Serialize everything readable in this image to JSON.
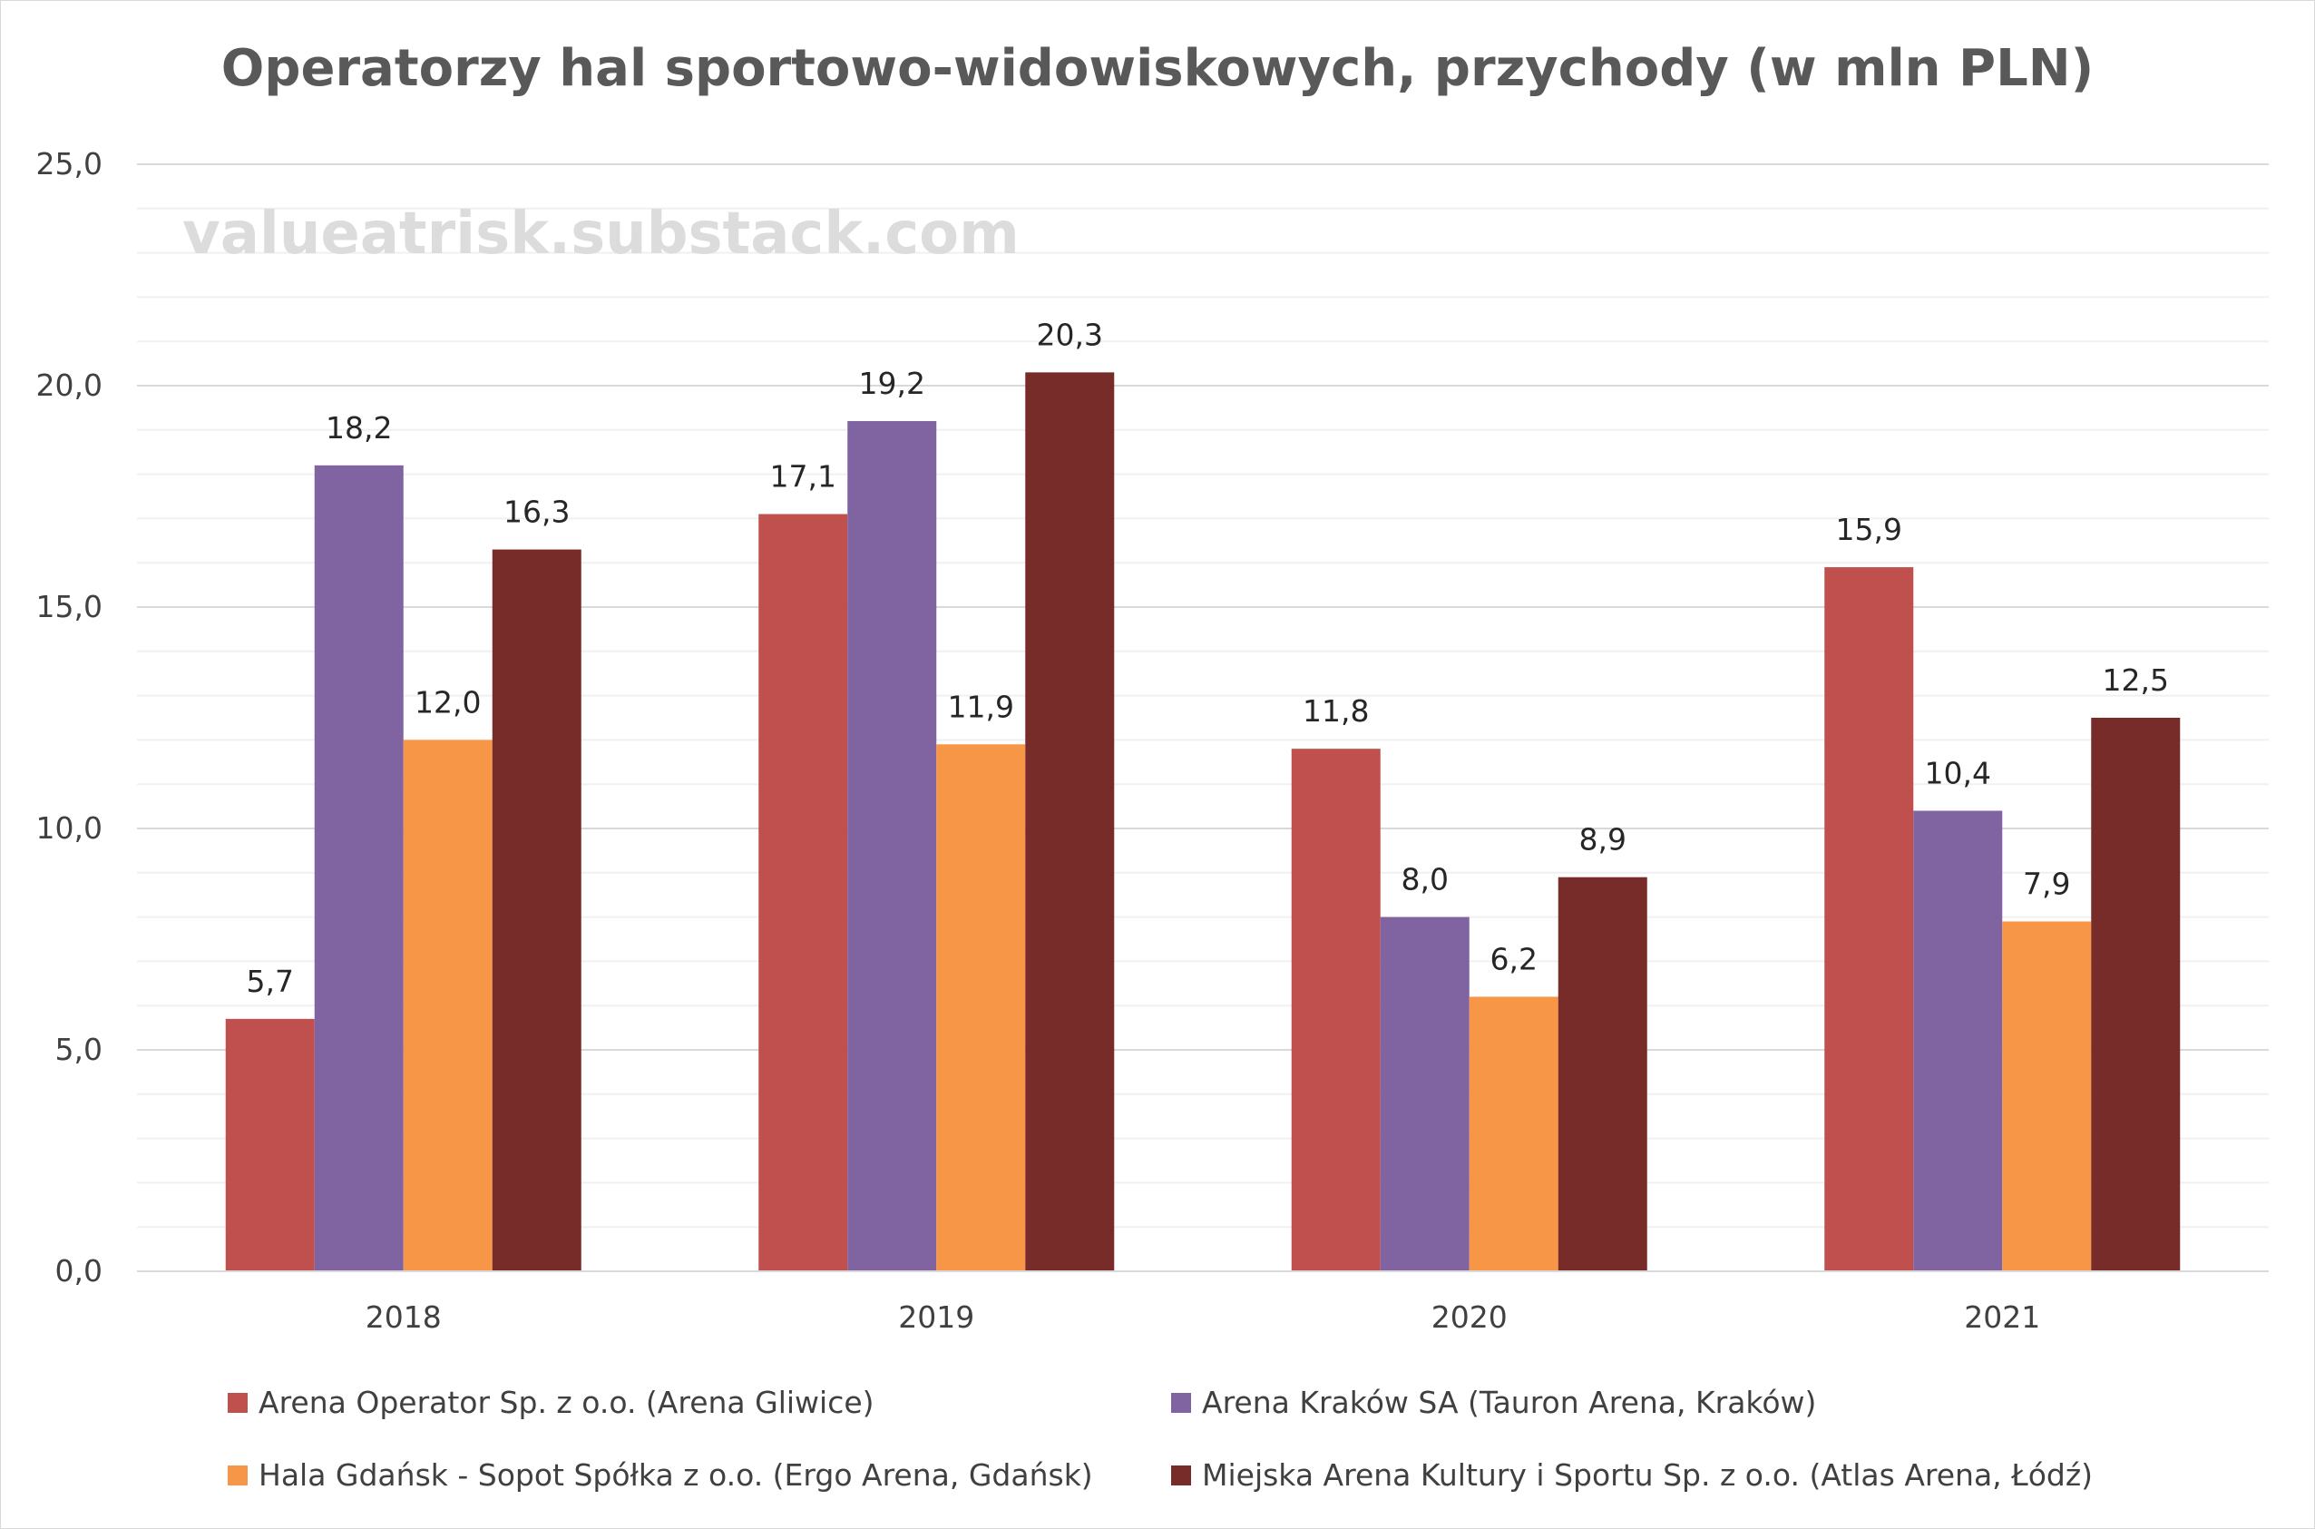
{
  "chart_data": {
    "type": "bar",
    "title": "Operatorzy hal sportowo-widowiskowych, przychody (w mln PLN)",
    "watermark": "valueatrisk.substack.com",
    "xlabel": "",
    "ylabel": "",
    "ylim": [
      0,
      25
    ],
    "yticks": [
      "0,0",
      "5,0",
      "10,0",
      "15,0",
      "20,0",
      "25,0"
    ],
    "grid": true,
    "legend_position": "bottom",
    "categories": [
      "2018",
      "2019",
      "2020",
      "2021"
    ],
    "series": [
      {
        "name": "Arena Operator Sp. z o.o. (Arena Gliwice)",
        "color": "#c0504d",
        "values": [
          5.7,
          17.1,
          11.8,
          15.9
        ],
        "labels": [
          "5,7",
          "17,1",
          "11,8",
          "15,9"
        ]
      },
      {
        "name": "Arena Kraków SA (Tauron Arena, Kraków)",
        "color": "#8064a2",
        "values": [
          18.2,
          19.2,
          8.0,
          10.4
        ],
        "labels": [
          "18,2",
          "19,2",
          "8,0",
          "10,4"
        ]
      },
      {
        "name": "Hala Gdańsk - Sopot Spółka z o.o. (Ergo Arena, Gdańsk)",
        "color": "#f79646",
        "values": [
          12.0,
          11.9,
          6.2,
          7.9
        ],
        "labels": [
          "12,0",
          "11,9",
          "6,2",
          "7,9"
        ]
      },
      {
        "name": "Miejska Arena Kultury i Sportu Sp. z o.o. (Atlas Arena, Łódź)",
        "color": "#772c2a",
        "values": [
          16.3,
          20.3,
          8.9,
          12.5
        ],
        "labels": [
          "16,3",
          "20,3",
          "8,9",
          "12,5"
        ]
      }
    ]
  }
}
